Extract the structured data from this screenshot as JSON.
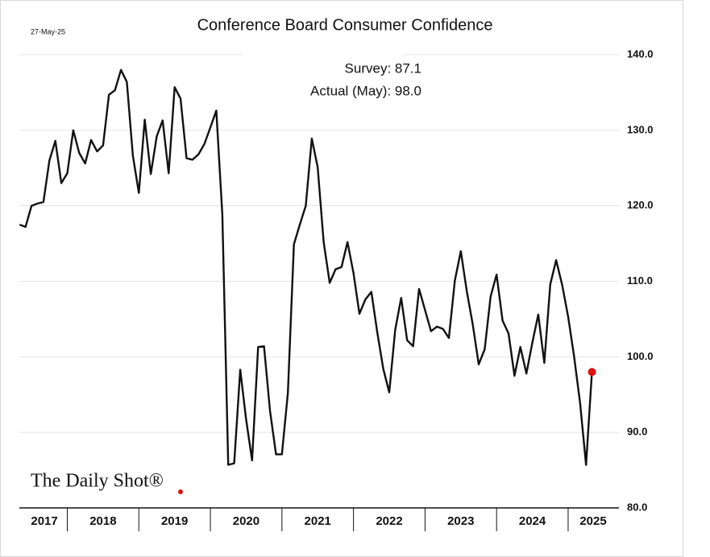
{
  "chart_data": {
    "type": "line",
    "title": "Conference Board Consumer Confidence",
    "date_label": "27-May-25",
    "annotations": [
      "Survey:  87.1",
      "Actual (May):  98.0"
    ],
    "source": "The Daily Shot®",
    "color": "#111111",
    "highlight_color": "#e01010",
    "grid": true,
    "xlim": [
      2017.33,
      2025.71
    ],
    "xticks": [
      {
        "value": 2017.68,
        "label": "2017"
      },
      {
        "value": 2018.5,
        "label": "2018"
      },
      {
        "value": 2019.5,
        "label": "2019"
      },
      {
        "value": 2020.5,
        "label": "2020"
      },
      {
        "value": 2021.5,
        "label": "2021"
      },
      {
        "value": 2022.5,
        "label": "2022"
      },
      {
        "value": 2023.5,
        "label": "2023"
      },
      {
        "value": 2024.5,
        "label": "2024"
      },
      {
        "value": 2025.35,
        "label": "2025"
      }
    ],
    "ylim": [
      80,
      140
    ],
    "yticks": [
      {
        "value": 80,
        "label": "80.0"
      },
      {
        "value": 90,
        "label": "90.0"
      },
      {
        "value": 100,
        "label": "100.0"
      },
      {
        "value": 110,
        "label": "110.0"
      },
      {
        "value": 120,
        "label": "120.0"
      },
      {
        "value": 130,
        "label": "130.0"
      },
      {
        "value": 140,
        "label": "140.0"
      }
    ],
    "x": [
      2017.333,
      2017.417,
      2017.5,
      2017.583,
      2017.667,
      2017.75,
      2017.833,
      2017.917,
      2018,
      2018.083,
      2018.167,
      2018.25,
      2018.333,
      2018.417,
      2018.5,
      2018.583,
      2018.667,
      2018.75,
      2018.833,
      2018.917,
      2019,
      2019.083,
      2019.167,
      2019.25,
      2019.333,
      2019.417,
      2019.5,
      2019.583,
      2019.667,
      2019.75,
      2019.833,
      2019.917,
      2020,
      2020.083,
      2020.167,
      2020.25,
      2020.333,
      2020.417,
      2020.5,
      2020.583,
      2020.667,
      2020.75,
      2020.833,
      2020.917,
      2021,
      2021.083,
      2021.167,
      2021.25,
      2021.333,
      2021.417,
      2021.5,
      2021.583,
      2021.667,
      2021.75,
      2021.833,
      2021.917,
      2022,
      2022.083,
      2022.167,
      2022.25,
      2022.333,
      2022.417,
      2022.5,
      2022.583,
      2022.667,
      2022.75,
      2022.833,
      2022.917,
      2023,
      2023.083,
      2023.167,
      2023.25,
      2023.333,
      2023.417,
      2023.5,
      2023.583,
      2023.667,
      2023.75,
      2023.833,
      2023.917,
      2024,
      2024.083,
      2024.167,
      2024.25,
      2024.333,
      2024.417,
      2024.5,
      2024.583,
      2024.667,
      2024.75,
      2024.833,
      2024.917,
      2025,
      2025.083,
      2025.167,
      2025.25,
      2025.333
    ],
    "values": [
      117.5,
      117.2,
      120,
      120.3,
      120.5,
      126,
      128.6,
      123,
      124.3,
      130,
      127,
      125.6,
      128.7,
      127.2,
      128,
      134.7,
      135.3,
      138,
      136.4,
      126.6,
      121.7,
      131.4,
      124.2,
      129.2,
      131.3,
      124.3,
      135.7,
      134.2,
      126.3,
      126.1,
      126.8,
      128.2,
      130.4,
      132.6,
      118.8,
      85.7,
      85.9,
      98.3,
      91.7,
      86.3,
      101.3,
      101.4,
      92.9,
      87.1,
      87.1,
      95.2,
      114.9,
      117.5,
      120,
      128.9,
      125.1,
      115.2,
      109.8,
      111.6,
      111.9,
      115.2,
      111.1,
      105.7,
      107.6,
      108.6,
      103.2,
      98.4,
      95.3,
      103.6,
      107.8,
      102.2,
      101.4,
      109,
      106.2,
      103.4,
      104,
      103.7,
      102.5,
      110.1,
      114,
      108.7,
      104.3,
      99,
      101,
      108,
      110.9,
      104.8,
      103.1,
      97.5,
      101.3,
      97.8,
      101.9,
      105.6,
      99.2,
      109.6,
      112.8,
      109.5,
      105.3,
      100.1,
      93.9,
      85.7,
      98
    ]
  }
}
